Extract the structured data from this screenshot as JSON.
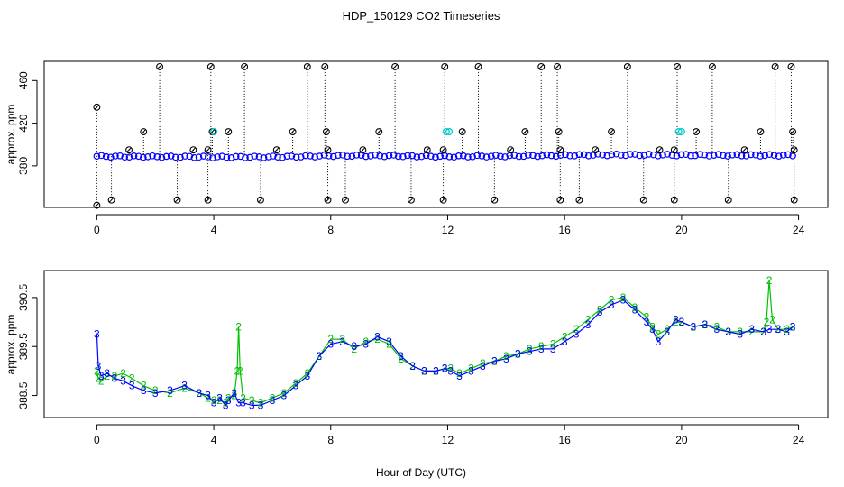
{
  "title": "HDP_150129  CO2 Timeseries",
  "xlabel": "Hour of Day (UTC)",
  "colors": {
    "series3": "#0000ff",
    "series2": "#00c000",
    "outlier_cyan": "#00cccc",
    "spike_line": "#000000"
  },
  "chart_data": [
    {
      "type": "scatter",
      "ylabel": "approx. ppm",
      "xlim": [
        -1.8,
        25
      ],
      "ylim": [
        341,
        478
      ],
      "x_ticks": [
        0,
        4,
        8,
        12,
        16,
        20,
        24
      ],
      "y_ticks": [
        380,
        420,
        460
      ],
      "baseline": {
        "name": "",
        "x": [
          0,
          1,
          2,
          3,
          4,
          5,
          6,
          7,
          8,
          9,
          10,
          11,
          12,
          13,
          14,
          15,
          16,
          17,
          18,
          19,
          20,
          21,
          22,
          23,
          23.8
        ],
        "y": [
          389,
          388.7,
          388.6,
          388.5,
          388.3,
          388.3,
          388.4,
          388.8,
          389.5,
          389.5,
          389.4,
          389,
          388.8,
          389,
          389.2,
          389.5,
          389.8,
          390.2,
          390.4,
          390.2,
          390.1,
          390,
          389.9,
          389.9,
          389.8
        ]
      },
      "spikes": [
        {
          "x": 0.0,
          "high": 435,
          "low": 343
        },
        {
          "x": 0.5,
          "high": 389,
          "low": 348
        },
        {
          "x": 1.1,
          "high": 395,
          "low": 389
        },
        {
          "x": 1.6,
          "high": 412,
          "low": 389
        },
        {
          "x": 2.15,
          "high": 473,
          "low": 389
        },
        {
          "x": 2.75,
          "high": 389,
          "low": 348
        },
        {
          "x": 3.3,
          "high": 395,
          "low": 389
        },
        {
          "x": 3.8,
          "high": 395,
          "low": 348
        },
        {
          "x": 3.9,
          "high": 473,
          "low": 389
        },
        {
          "x": 3.95,
          "high": 412,
          "low": 389
        },
        {
          "x": 4.5,
          "high": 412,
          "low": 389
        },
        {
          "x": 5.05,
          "high": 473,
          "low": 389
        },
        {
          "x": 5.6,
          "high": 389,
          "low": 348
        },
        {
          "x": 6.15,
          "high": 395,
          "low": 389
        },
        {
          "x": 6.7,
          "high": 412,
          "low": 389
        },
        {
          "x": 7.2,
          "high": 473,
          "low": 389
        },
        {
          "x": 7.8,
          "high": 473,
          "low": 389
        },
        {
          "x": 7.85,
          "high": 412,
          "low": 389
        },
        {
          "x": 7.9,
          "high": 395,
          "low": 348
        },
        {
          "x": 8.5,
          "high": 389,
          "low": 348
        },
        {
          "x": 9.1,
          "high": 395,
          "low": 389
        },
        {
          "x": 9.65,
          "high": 412,
          "low": 389
        },
        {
          "x": 10.2,
          "high": 473,
          "low": 389
        },
        {
          "x": 10.75,
          "high": 389,
          "low": 348
        },
        {
          "x": 11.3,
          "high": 395,
          "low": 389
        },
        {
          "x": 11.85,
          "high": 395,
          "low": 348
        },
        {
          "x": 11.9,
          "high": 473,
          "low": 389
        },
        {
          "x": 12.5,
          "high": 412,
          "low": 389
        },
        {
          "x": 13.05,
          "high": 473,
          "low": 389
        },
        {
          "x": 13.6,
          "high": 389,
          "low": 348
        },
        {
          "x": 14.15,
          "high": 395,
          "low": 389
        },
        {
          "x": 14.65,
          "high": 412,
          "low": 389
        },
        {
          "x": 15.2,
          "high": 473,
          "low": 389
        },
        {
          "x": 15.75,
          "high": 473,
          "low": 389
        },
        {
          "x": 15.8,
          "high": 412,
          "low": 389
        },
        {
          "x": 15.85,
          "high": 395,
          "low": 348
        },
        {
          "x": 16.5,
          "high": 389,
          "low": 348
        },
        {
          "x": 17.05,
          "high": 395,
          "low": 389
        },
        {
          "x": 17.6,
          "high": 412,
          "low": 389
        },
        {
          "x": 18.15,
          "high": 473,
          "low": 389
        },
        {
          "x": 18.7,
          "high": 389,
          "low": 348
        },
        {
          "x": 19.25,
          "high": 395,
          "low": 389
        },
        {
          "x": 19.75,
          "high": 395,
          "low": 348
        },
        {
          "x": 19.85,
          "high": 473,
          "low": 389
        },
        {
          "x": 20.5,
          "high": 412,
          "low": 389
        },
        {
          "x": 21.05,
          "high": 473,
          "low": 389
        },
        {
          "x": 21.6,
          "high": 389,
          "low": 348
        },
        {
          "x": 22.15,
          "high": 395,
          "low": 389
        },
        {
          "x": 22.7,
          "high": 412,
          "low": 389
        },
        {
          "x": 23.2,
          "high": 473,
          "low": 389
        },
        {
          "x": 23.75,
          "high": 473,
          "low": 389
        },
        {
          "x": 23.8,
          "high": 412,
          "low": 389
        },
        {
          "x": 23.85,
          "high": 395,
          "low": 348
        }
      ],
      "cyan_points": [
        {
          "x": 4.0,
          "y": 412
        },
        {
          "x": 11.95,
          "y": 412
        },
        {
          "x": 12.05,
          "y": 412
        },
        {
          "x": 19.9,
          "y": 412
        },
        {
          "x": 20.0,
          "y": 412
        }
      ]
    },
    {
      "type": "line",
      "ylabel": "approx. ppm",
      "xlim": [
        -1.8,
        25
      ],
      "ylim": [
        388.05,
        391.05
      ],
      "x_ticks": [
        0,
        4,
        8,
        12,
        16,
        20,
        24
      ],
      "y_ticks": [
        388.5,
        389.5,
        390.5
      ],
      "series": [
        {
          "name": "3",
          "x": [
            0,
            0.05,
            0.15,
            0.35,
            0.6,
            0.9,
            1.2,
            1.6,
            2.0,
            2.5,
            3.0,
            3.5,
            3.8,
            4.0,
            4.2,
            4.4,
            4.5,
            4.7,
            4.85,
            5.0,
            5.3,
            5.6,
            6.0,
            6.4,
            6.8,
            7.2,
            7.6,
            8.0,
            8.4,
            8.8,
            9.2,
            9.6,
            10.0,
            10.4,
            10.8,
            11.2,
            11.6,
            11.9,
            12.1,
            12.4,
            12.8,
            13.2,
            13.6,
            14.0,
            14.4,
            14.8,
            15.2,
            15.6,
            16.0,
            16.4,
            16.8,
            17.2,
            17.6,
            18.0,
            18.4,
            18.8,
            19.0,
            19.2,
            19.5,
            19.8,
            20.0,
            20.4,
            20.8,
            21.2,
            21.6,
            22.0,
            22.4,
            22.8,
            23.0,
            23.3,
            23.6,
            23.8
          ],
          "y": [
            389.75,
            389.1,
            388.9,
            388.95,
            388.85,
            388.8,
            388.7,
            388.6,
            388.55,
            388.6,
            388.7,
            388.55,
            388.5,
            388.35,
            388.45,
            388.3,
            388.4,
            388.55,
            388.35,
            388.35,
            388.3,
            388.3,
            388.4,
            388.5,
            388.7,
            388.9,
            389.3,
            389.55,
            389.6,
            389.5,
            389.55,
            389.7,
            389.6,
            389.3,
            389.1,
            389.0,
            389.0,
            389.05,
            389.0,
            388.9,
            389.0,
            389.1,
            389.2,
            389.25,
            389.35,
            389.4,
            389.45,
            389.45,
            389.6,
            389.75,
            389.95,
            390.2,
            390.35,
            390.45,
            390.25,
            390.0,
            389.85,
            389.6,
            389.8,
            390.05,
            390.0,
            389.9,
            389.95,
            389.85,
            389.8,
            389.75,
            389.85,
            389.8,
            389.85,
            389.85,
            389.8,
            389.9
          ]
        },
        {
          "name": "2",
          "x": [
            0,
            0.05,
            0.15,
            0.35,
            0.6,
            0.9,
            1.2,
            1.6,
            2.0,
            2.5,
            3.0,
            3.5,
            3.8,
            4.0,
            4.2,
            4.4,
            4.5,
            4.7,
            4.8,
            4.85,
            4.9,
            5.0,
            5.3,
            5.6,
            6.0,
            6.4,
            6.8,
            7.2,
            7.6,
            8.0,
            8.4,
            8.8,
            9.2,
            9.6,
            10.0,
            10.4,
            10.8,
            11.2,
            11.6,
            11.9,
            12.1,
            12.4,
            12.8,
            13.2,
            13.6,
            14.0,
            14.4,
            14.8,
            15.2,
            15.6,
            16.0,
            16.4,
            16.8,
            17.2,
            17.6,
            18.0,
            18.4,
            18.8,
            19.0,
            19.2,
            19.5,
            19.8,
            20.0,
            20.4,
            20.8,
            21.2,
            21.6,
            22.0,
            22.4,
            22.8,
            22.9,
            23.0,
            23.1,
            23.3,
            23.6,
            23.8
          ],
          "y": [
            389.0,
            388.85,
            388.8,
            388.9,
            388.9,
            388.95,
            388.85,
            388.7,
            388.6,
            388.55,
            388.65,
            388.55,
            388.45,
            388.4,
            388.4,
            388.35,
            388.45,
            388.5,
            389.0,
            389.9,
            389.0,
            388.45,
            388.4,
            388.35,
            388.45,
            388.55,
            388.75,
            388.95,
            389.3,
            389.65,
            389.65,
            389.45,
            389.6,
            389.65,
            389.55,
            389.25,
            389.1,
            389.0,
            389.0,
            389.05,
            389.05,
            388.95,
            389.05,
            389.15,
            389.2,
            389.3,
            389.35,
            389.45,
            389.5,
            389.55,
            389.7,
            389.85,
            390.05,
            390.25,
            390.45,
            390.5,
            390.3,
            390.1,
            389.9,
            389.75,
            389.85,
            390.0,
            390.0,
            389.9,
            389.95,
            389.9,
            389.8,
            389.8,
            389.8,
            389.8,
            390.0,
            390.85,
            390.05,
            389.85,
            389.85,
            389.9
          ]
        }
      ]
    }
  ]
}
